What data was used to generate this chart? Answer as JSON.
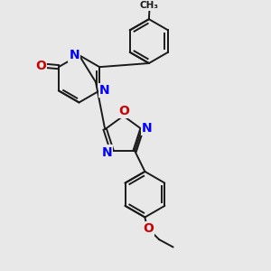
{
  "bg_color": "#e8e8e8",
  "bond_color": "#1a1a1a",
  "N_color": "#0000ff",
  "O_color": "#cc0000",
  "figsize": [
    3.0,
    3.0
  ],
  "dpi": 100,
  "xlim": [
    0,
    10
  ],
  "ylim": [
    0,
    10
  ]
}
